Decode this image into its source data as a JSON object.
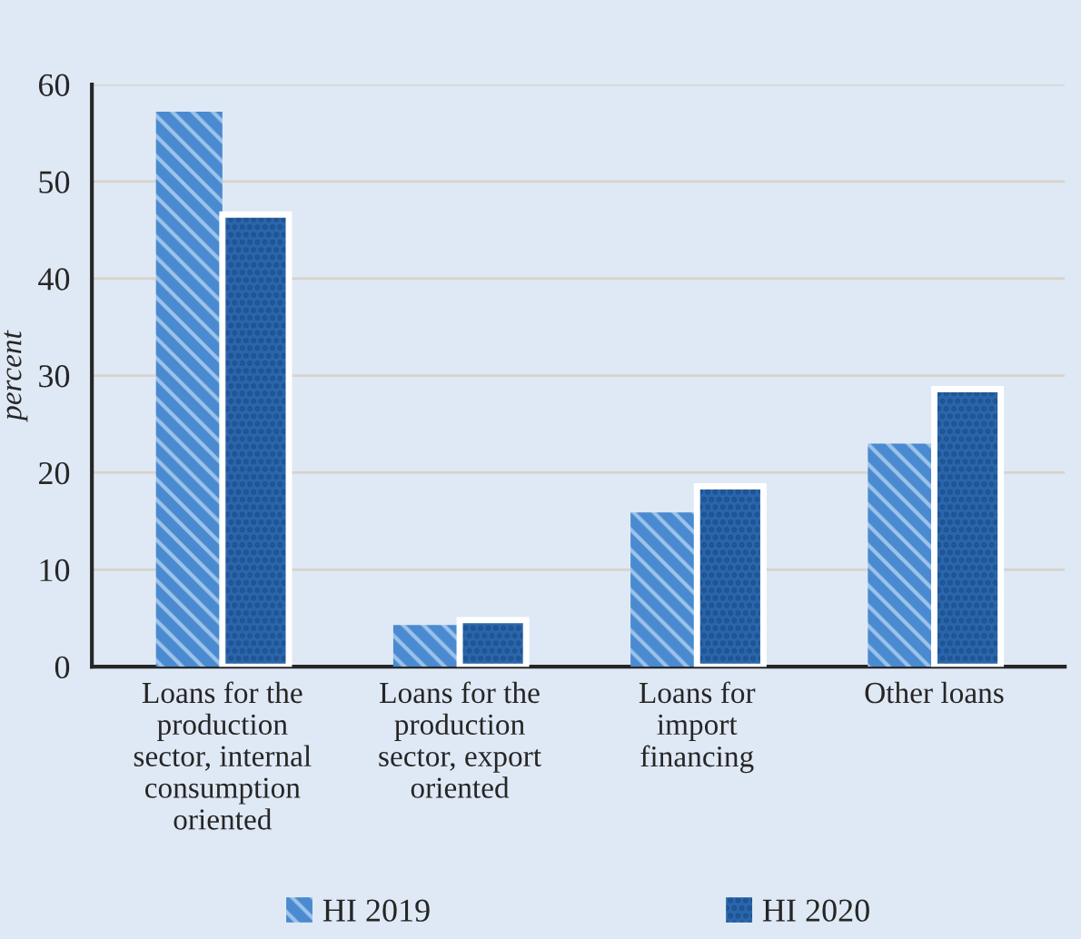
{
  "chart_data": {
    "type": "bar",
    "ylabel": "percent",
    "categories": [
      "Loans for the\nproduction\nsector, internal\nconsumption\noriented",
      "Loans for the\nproduction\nsector, export\noriented",
      "Loans for\nimport\nfinancing",
      "Other loans"
    ],
    "series": [
      {
        "name": "HI 2019",
        "color": "#4a8ad0",
        "values": [
          57.2,
          4.3,
          15.9,
          23.0
        ]
      },
      {
        "name": "HI 2020",
        "color": "#2a66ac",
        "values": [
          46.6,
          4.8,
          18.6,
          28.6
        ]
      }
    ],
    "ylim": [
      0,
      60
    ],
    "yticks": [
      0,
      10,
      20,
      30,
      40,
      50,
      60
    ],
    "grid": "y",
    "legend": "bottom"
  }
}
